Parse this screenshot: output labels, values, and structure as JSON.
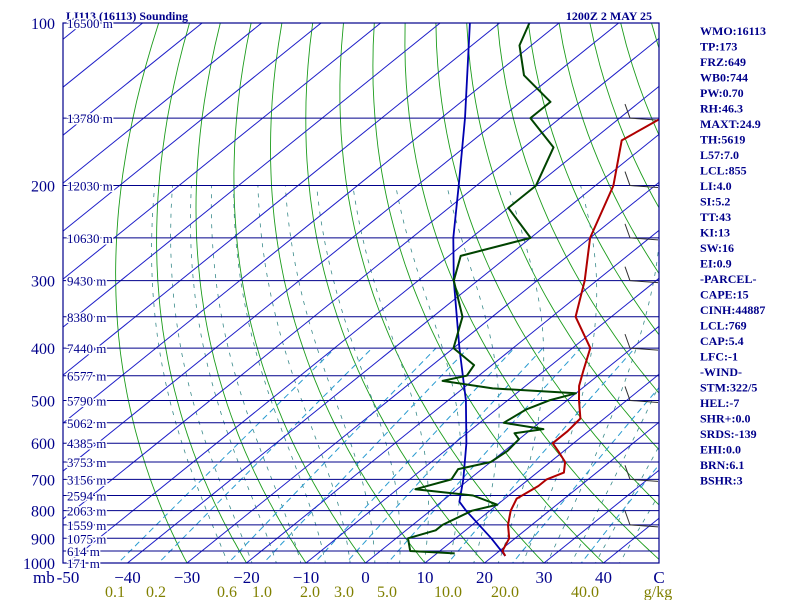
{
  "chart_data": {
    "type": "skew-t",
    "title": "LI113 (16113) Sounding",
    "valid_time": "1200Z  2 MAY 25",
    "pressure_levels": [
      100,
      200,
      300,
      400,
      500,
      600,
      700,
      800,
      900,
      1000
    ],
    "pressure_labels": [
      "100",
      "200",
      "300",
      "400",
      "500",
      "600",
      "700",
      "800",
      "900",
      "1000"
    ],
    "height_levels": [
      {
        "p": 100,
        "label": "16500 m"
      },
      {
        "p": 150,
        "label": "13780 m"
      },
      {
        "p": 200,
        "label": "12030 m"
      },
      {
        "p": 250,
        "label": "10630 m"
      },
      {
        "p": 300,
        "label": "9430 m"
      },
      {
        "p": 350,
        "label": "8380 m"
      },
      {
        "p": 400,
        "label": "7440 m"
      },
      {
        "p": 450,
        "label": "6577 m"
      },
      {
        "p": 500,
        "label": "5790 m"
      },
      {
        "p": 550,
        "label": "5062 m"
      },
      {
        "p": 600,
        "label": "4385 m"
      },
      {
        "p": 650,
        "label": "3753 m"
      },
      {
        "p": 700,
        "label": "3156 m"
      },
      {
        "p": 750,
        "label": "2594 m"
      },
      {
        "p": 800,
        "label": "2063 m"
      },
      {
        "p": 850,
        "label": "1559 m"
      },
      {
        "p": 900,
        "label": "1075 m"
      },
      {
        "p": 950,
        "label": "614 m"
      },
      {
        "p": 1000,
        "label": "171 m"
      }
    ],
    "temperature_axis": {
      "unit_label": "mb",
      "ticks": [
        -50,
        -40,
        -30,
        -20,
        -10,
        0,
        10,
        20,
        30,
        40
      ],
      "tick_labels": [
        "-50",
        "−40",
        "−30",
        "−20",
        "−10",
        "0",
        "10",
        "20",
        "30",
        "40"
      ],
      "end_label": "C"
    },
    "mixing_ratio_axis": {
      "labels": [
        "0.1",
        "0.2",
        "0.6",
        "1.0",
        "2.0",
        "3.0",
        "5.0",
        "10.0",
        "20.0",
        "40.0"
      ],
      "unit": "g/kg"
    },
    "temperature_profile": [
      {
        "p": 970,
        "t": 22.0
      },
      {
        "p": 950,
        "t": 20.5
      },
      {
        "p": 900,
        "t": 19.0
      },
      {
        "p": 850,
        "t": 16.0
      },
      {
        "p": 800,
        "t": 13.5
      },
      {
        "p": 760,
        "t": 12.0
      },
      {
        "p": 720,
        "t": 13.0
      },
      {
        "p": 700,
        "t": 13.0
      },
      {
        "p": 680,
        "t": 14.5
      },
      {
        "p": 650,
        "t": 12.5
      },
      {
        "p": 620,
        "t": 9.0
      },
      {
        "p": 600,
        "t": 6.5
      },
      {
        "p": 570,
        "t": 6.5
      },
      {
        "p": 540,
        "t": 6.0
      },
      {
        "p": 500,
        "t": 2.0
      },
      {
        "p": 470,
        "t": -1.0
      },
      {
        "p": 440,
        "t": -3.5
      },
      {
        "p": 400,
        "t": -7.0
      },
      {
        "p": 350,
        "t": -16.0
      },
      {
        "p": 300,
        "t": -22.0
      },
      {
        "p": 250,
        "t": -30.0
      },
      {
        "p": 200,
        "t": -37.0
      },
      {
        "p": 165,
        "t": -45.0
      },
      {
        "p": 150,
        "t": -43.0
      },
      {
        "p": 140,
        "t": -41.0
      },
      {
        "p": 115,
        "t": -40.0
      },
      {
        "p": 100,
        "t": -42.0
      }
    ],
    "dewpoint_profile": [
      {
        "p": 960,
        "t": 13.0
      },
      {
        "p": 950,
        "t": 5.0
      },
      {
        "p": 900,
        "t": 2.0
      },
      {
        "p": 870,
        "t": 5.0
      },
      {
        "p": 850,
        "t": 5.0
      },
      {
        "p": 800,
        "t": 7.0
      },
      {
        "p": 780,
        "t": 10.0
      },
      {
        "p": 750,
        "t": 4.0
      },
      {
        "p": 730,
        "t": -7.0
      },
      {
        "p": 700,
        "t": -3.0
      },
      {
        "p": 670,
        "t": -4.0
      },
      {
        "p": 650,
        "t": 0.0
      },
      {
        "p": 620,
        "t": 0.5
      },
      {
        "p": 590,
        "t": 0.0
      },
      {
        "p": 575,
        "t": -2.0
      },
      {
        "p": 565,
        "t": 2.0
      },
      {
        "p": 550,
        "t": -6.0
      },
      {
        "p": 520,
        "t": -5.0
      },
      {
        "p": 500,
        "t": -3.0
      },
      {
        "p": 485,
        "t": 0.0
      },
      {
        "p": 475,
        "t": -15.0
      },
      {
        "p": 460,
        "t": -25.0
      },
      {
        "p": 450,
        "t": -22.0
      },
      {
        "p": 430,
        "t": -23.0
      },
      {
        "p": 400,
        "t": -30.0
      },
      {
        "p": 350,
        "t": -35.0
      },
      {
        "p": 300,
        "t": -44.0
      },
      {
        "p": 270,
        "t": -48.0
      },
      {
        "p": 250,
        "t": -40.0
      },
      {
        "p": 220,
        "t": -50.0
      },
      {
        "p": 200,
        "t": -50.0
      },
      {
        "p": 170,
        "t": -55.0
      },
      {
        "p": 150,
        "t": -65.0
      },
      {
        "p": 140,
        "t": -65.0
      },
      {
        "p": 125,
        "t": -75.0
      },
      {
        "p": 110,
        "t": -82.0
      },
      {
        "p": 100,
        "t": -85.0
      }
    ],
    "parcel_profile": [
      {
        "p": 970,
        "t": 22.0
      },
      {
        "p": 900,
        "t": 16.0
      },
      {
        "p": 800,
        "t": 6.0
      },
      {
        "p": 770,
        "t": 3.0
      },
      {
        "p": 700,
        "t": -1.0
      },
      {
        "p": 600,
        "t": -8.0
      },
      {
        "p": 500,
        "t": -17.0
      },
      {
        "p": 400,
        "t": -29.0
      },
      {
        "p": 300,
        "t": -44.0
      },
      {
        "p": 250,
        "t": -53.0
      },
      {
        "p": 200,
        "t": -63.0
      },
      {
        "p": 150,
        "t": -76.0
      },
      {
        "p": 100,
        "t": -95.0
      }
    ],
    "wind_barbs": [
      {
        "p": 150
      },
      {
        "p": 200
      },
      {
        "p": 250
      },
      {
        "p": 300
      },
      {
        "p": 400
      },
      {
        "p": 500
      },
      {
        "p": 700
      },
      {
        "p": 850
      }
    ],
    "grid": true,
    "legend_placement": "right"
  },
  "indices": [
    "WMO:16113",
    "TP:173",
    "FRZ:649",
    "WB0:744",
    "PW:0.70",
    "RH:46.3",
    "MAXT:24.9",
    "TH:5619",
    "L57:7.0",
    "LCL:855",
    "LI:4.0",
    "SI:5.2",
    "TT:43",
    "KI:13",
    "SW:16",
    "EI:0.9",
    "-PARCEL-",
    "CAPE:15",
    "CINH:44887",
    "LCL:769",
    "CAP:5.4",
    "LFC:-1",
    "-WIND-",
    "STM:322/5",
    "HEL:-7",
    "SHR+:0.0",
    "SRDS:-139",
    "EHI:0.0",
    "BRN:6.1",
    "BSHR:3"
  ],
  "colors": {
    "frame": "#00008b",
    "isotherm": "#1e1ec8",
    "dry_adiabat": "#1c9c1c",
    "moist_adiabat": "#3a8a8a",
    "mixing_ratio": "#2a9bd0",
    "temperature": "#b00000",
    "dewpoint": "#004400",
    "parcel": "#0000b0"
  }
}
